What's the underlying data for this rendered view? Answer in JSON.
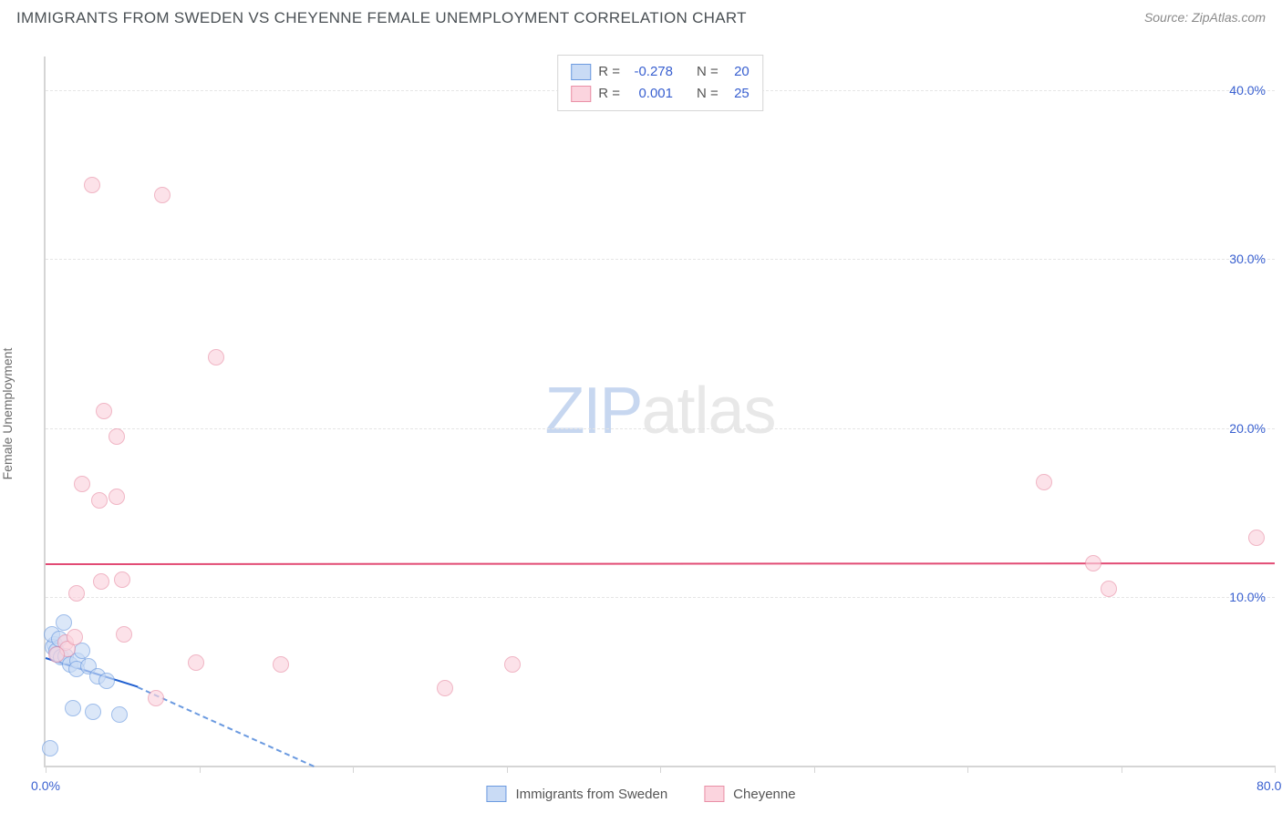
{
  "title": "IMMIGRANTS FROM SWEDEN VS CHEYENNE FEMALE UNEMPLOYMENT CORRELATION CHART",
  "source_label": "Source: ",
  "source_name": "ZipAtlas.com",
  "y_axis_label": "Female Unemployment",
  "watermark": {
    "part1": "ZIP",
    "part2": "atlas"
  },
  "chart": {
    "type": "scatter",
    "background_color": "#ffffff",
    "border_color": "#d5d5d5",
    "grid_color": "#e5e5e5",
    "xlim": [
      0,
      80
    ],
    "ylim": [
      0,
      42
    ],
    "x_ticks": [
      0,
      10,
      20,
      30,
      40,
      50,
      60,
      70,
      80
    ],
    "x_tick_labels": {
      "0": "0.0%",
      "80": "80.0%"
    },
    "y_ticks": [
      10,
      20,
      30,
      40
    ],
    "y_tick_labels": {
      "10": "10.0%",
      "20": "20.0%",
      "30": "30.0%",
      "40": "40.0%"
    },
    "tick_label_color": "#3960d0",
    "tick_label_fontsize": 14,
    "marker_radius": 9,
    "series": [
      {
        "name": "Immigrants from Sweden",
        "fill_color": "#c9dbf5",
        "stroke_color": "#6b9ae0",
        "fill_opacity": 0.65,
        "r": "-0.278",
        "n": "20",
        "trend": {
          "color_solid": "#1f5fd0",
          "color_dashed": "#6b9ae0",
          "x1": 0,
          "y1": 6.4,
          "x2_solid": 6,
          "y2_solid": 4.7,
          "x2_dashed": 17.5,
          "y2_dashed": 0
        },
        "points": [
          [
            0.3,
            1.0
          ],
          [
            1.2,
            8.5
          ],
          [
            0.6,
            7.2
          ],
          [
            0.5,
            7.0
          ],
          [
            0.7,
            6.8
          ],
          [
            0.8,
            6.6
          ],
          [
            1.0,
            6.4
          ],
          [
            1.3,
            6.5
          ],
          [
            1.6,
            6.0
          ],
          [
            2.1,
            6.2
          ],
          [
            2.4,
            6.8
          ],
          [
            2.0,
            5.7
          ],
          [
            2.8,
            5.9
          ],
          [
            3.4,
            5.3
          ],
          [
            4.0,
            5.0
          ],
          [
            1.8,
            3.4
          ],
          [
            3.1,
            3.2
          ],
          [
            4.8,
            3.0
          ],
          [
            0.4,
            7.8
          ],
          [
            0.9,
            7.5
          ]
        ]
      },
      {
        "name": "Cheyenne",
        "fill_color": "#fbd4de",
        "stroke_color": "#e98fa6",
        "fill_opacity": 0.65,
        "r": "0.001",
        "n": "25",
        "trend": {
          "color_solid": "#e24b74",
          "x1": 0,
          "y1": 12.0,
          "x2_solid": 80,
          "y2_solid": 12.05
        },
        "points": [
          [
            3.0,
            34.4
          ],
          [
            7.6,
            33.8
          ],
          [
            3.8,
            21.0
          ],
          [
            4.6,
            19.5
          ],
          [
            2.4,
            16.7
          ],
          [
            3.5,
            15.7
          ],
          [
            4.6,
            15.9
          ],
          [
            2.0,
            10.2
          ],
          [
            3.6,
            10.9
          ],
          [
            1.3,
            7.3
          ],
          [
            1.4,
            6.9
          ],
          [
            0.7,
            6.6
          ],
          [
            1.9,
            7.6
          ],
          [
            5.1,
            7.8
          ],
          [
            9.8,
            6.1
          ],
          [
            11.1,
            24.2
          ],
          [
            15.3,
            6.0
          ],
          [
            26.0,
            4.6
          ],
          [
            30.4,
            6.0
          ],
          [
            7.2,
            4.0
          ],
          [
            68.2,
            12.0
          ],
          [
            69.2,
            10.5
          ],
          [
            65.0,
            16.8
          ],
          [
            78.8,
            13.5
          ],
          [
            5.0,
            11.0
          ]
        ]
      }
    ]
  },
  "legend_top": {
    "r_label": "R =",
    "n_label": "N ="
  },
  "legend_bottom_labels": [
    "Immigrants from Sweden",
    "Cheyenne"
  ]
}
